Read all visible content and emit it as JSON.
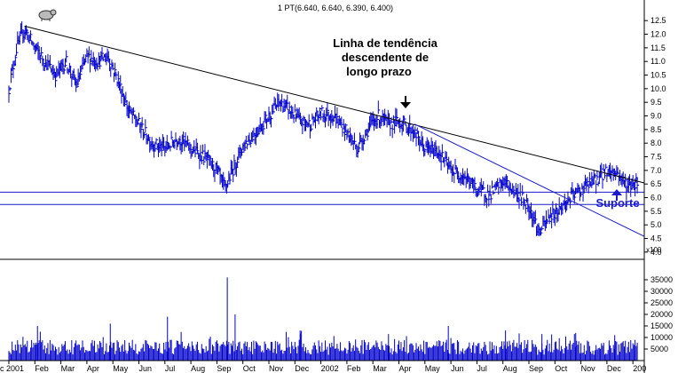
{
  "header": {
    "quote": "1 PT(6.640, 6.640, 6.390, 6.400)"
  },
  "colors": {
    "bars": "#0000cc",
    "trend": "#000000",
    "support": "#1a1acc",
    "annotation_support": "#1a1acc",
    "axis": "#000000"
  },
  "icon": "bear-icon",
  "chart_data": {
    "type": "ohlc",
    "price_axis": {
      "ylim": [
        3.8,
        12.8
      ],
      "ticks": [
        4.0,
        4.5,
        5.0,
        5.5,
        6.0,
        6.5,
        7.0,
        7.5,
        8.0,
        8.5,
        9.0,
        9.5,
        10.0,
        10.5,
        11.0,
        11.5,
        12.0,
        12.5
      ]
    },
    "volume_axis": {
      "ylim": [
        0,
        40000
      ],
      "ticks": [
        5000,
        10000,
        15000,
        20000,
        25000,
        30000,
        35000
      ],
      "unit": "x100"
    },
    "months": [
      "c 2001",
      "Feb",
      "Mar",
      "Apr",
      "May",
      "Jun",
      "Jul",
      "Aug",
      "Sep",
      "Oct",
      "Nov",
      "Dec",
      "2002",
      "Feb",
      "Mar",
      "Apr",
      "May",
      "Jun",
      "Jul",
      "Aug",
      "Sep",
      "Oct",
      "Nov",
      "Dec",
      "200"
    ],
    "price_path": [
      [
        0.0,
        10.0
      ],
      [
        0.3,
        11.5
      ],
      [
        0.6,
        12.2
      ],
      [
        1.0,
        11.5
      ],
      [
        1.4,
        11.0
      ],
      [
        1.8,
        10.5
      ],
      [
        2.2,
        11.0
      ],
      [
        2.6,
        10.1
      ],
      [
        3.0,
        11.2
      ],
      [
        3.4,
        11.0
      ],
      [
        3.8,
        11.2
      ],
      [
        4.2,
        10.3
      ],
      [
        4.6,
        9.2
      ],
      [
        5.0,
        8.7
      ],
      [
        5.5,
        8.0
      ],
      [
        6.0,
        7.8
      ],
      [
        6.5,
        8.2
      ],
      [
        7.0,
        7.8
      ],
      [
        7.5,
        7.5
      ],
      [
        8.0,
        7.0
      ],
      [
        8.3,
        6.3
      ],
      [
        8.6,
        7.0
      ],
      [
        9.0,
        7.9
      ],
      [
        9.5,
        8.4
      ],
      [
        10.0,
        9.0
      ],
      [
        10.4,
        9.5
      ],
      [
        10.8,
        9.2
      ],
      [
        11.2,
        8.8
      ],
      [
        11.6,
        8.7
      ],
      [
        12.0,
        9.1
      ],
      [
        12.5,
        9.0
      ],
      [
        13.0,
        8.4
      ],
      [
        13.4,
        7.8
      ],
      [
        13.8,
        8.5
      ],
      [
        14.2,
        9.0
      ],
      [
        14.6,
        8.7
      ],
      [
        15.0,
        8.8
      ],
      [
        15.5,
        8.5
      ],
      [
        16.0,
        7.8
      ],
      [
        16.5,
        7.7
      ],
      [
        17.0,
        7.0
      ],
      [
        17.5,
        6.8
      ],
      [
        18.0,
        6.3
      ],
      [
        18.5,
        6.1
      ],
      [
        19.0,
        6.6
      ],
      [
        19.5,
        6.2
      ],
      [
        20.0,
        5.7
      ],
      [
        20.4,
        4.7
      ],
      [
        20.8,
        5.3
      ],
      [
        21.2,
        5.6
      ],
      [
        21.6,
        6.0
      ],
      [
        22.0,
        6.3
      ],
      [
        22.5,
        6.6
      ],
      [
        23.0,
        7.0
      ],
      [
        23.4,
        6.9
      ],
      [
        23.8,
        6.4
      ],
      [
        24.2,
        6.6
      ]
    ],
    "volume": [
      {
        "x": 1.1,
        "v": 15000
      },
      {
        "x": 3.9,
        "v": 16000
      },
      {
        "x": 6.1,
        "v": 19000
      },
      {
        "x": 8.4,
        "v": 36000
      },
      {
        "x": 8.7,
        "v": 20000
      },
      {
        "x": 11.2,
        "v": 13000
      },
      {
        "x": 14.6,
        "v": 11500
      },
      {
        "x": 16.9,
        "v": 15000
      },
      {
        "x": 19.1,
        "v": 13000
      },
      {
        "x": 20.5,
        "v": 11500
      },
      {
        "x": 21.8,
        "v": 12000
      },
      {
        "x": 23.3,
        "v": 11000
      }
    ],
    "trendlines": [
      {
        "from": [
          0.6,
          12.3
        ],
        "to": [
          24.6,
          6.5
        ]
      },
      {
        "from": [
          15.6,
          8.7
        ],
        "to": [
          24.6,
          4.5
        ]
      }
    ],
    "support_levels": [
      6.2,
      5.75
    ],
    "annotations": {
      "trend_label": [
        "Linha de tendência",
        "descendente de",
        "longo prazo"
      ],
      "support_label": "Suporte"
    }
  }
}
